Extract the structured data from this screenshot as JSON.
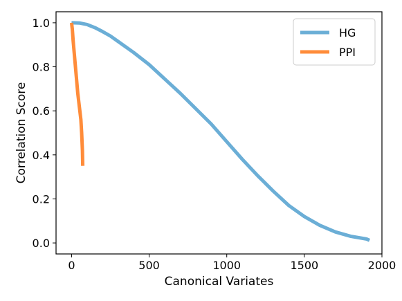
{
  "chart_data": {
    "type": "line",
    "title": "",
    "xlabel": "Canonical Variates",
    "ylabel": "Correlation Score",
    "xlim": [
      -100,
      2000
    ],
    "ylim": [
      -0.05,
      1.05
    ],
    "xticks": [
      0,
      500,
      1000,
      1500,
      2000
    ],
    "yticks": [
      0.0,
      0.2,
      0.4,
      0.6,
      0.8,
      1.0
    ],
    "xtick_labels": [
      "0",
      "500",
      "1000",
      "1500",
      "2000"
    ],
    "ytick_labels": [
      "0.0",
      "0.2",
      "0.4",
      "0.6",
      "0.8",
      "1.0"
    ],
    "grid": false,
    "legend_position": "top-right",
    "series": [
      {
        "name": "HG",
        "color": "#6baed6",
        "x": [
          0,
          50,
          100,
          150,
          200,
          250,
          300,
          400,
          500,
          600,
          700,
          800,
          900,
          1000,
          1100,
          1200,
          1300,
          1400,
          1500,
          1600,
          1700,
          1800,
          1900,
          1920
        ],
        "y": [
          1.0,
          0.999,
          0.992,
          0.978,
          0.96,
          0.94,
          0.915,
          0.865,
          0.81,
          0.745,
          0.68,
          0.61,
          0.54,
          0.46,
          0.38,
          0.305,
          0.235,
          0.17,
          0.12,
          0.08,
          0.05,
          0.03,
          0.018,
          0.012
        ]
      },
      {
        "name": "PPI",
        "color": "#ff8c3a",
        "x": [
          0,
          5,
          10,
          20,
          30,
          40,
          50,
          60,
          65,
          70,
          72
        ],
        "y": [
          1.0,
          0.97,
          0.92,
          0.84,
          0.76,
          0.68,
          0.62,
          0.56,
          0.5,
          0.42,
          0.35
        ]
      }
    ]
  }
}
